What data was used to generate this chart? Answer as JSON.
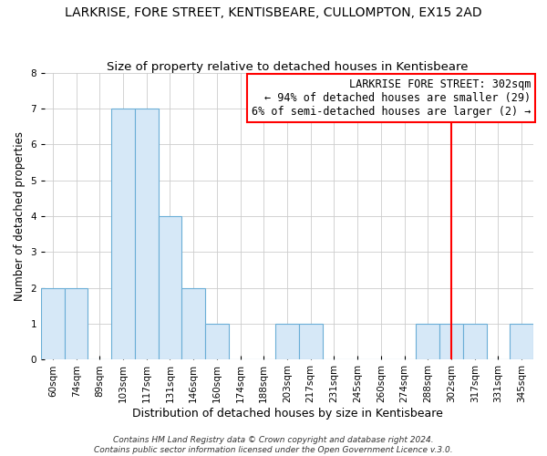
{
  "title": "LARKRISE, FORE STREET, KENTISBEARE, CULLOMPTON, EX15 2AD",
  "subtitle": "Size of property relative to detached houses in Kentisbeare",
  "xlabel": "Distribution of detached houses by size in Kentisbeare",
  "ylabel": "Number of detached properties",
  "bin_labels": [
    "60sqm",
    "74sqm",
    "89sqm",
    "103sqm",
    "117sqm",
    "131sqm",
    "146sqm",
    "160sqm",
    "174sqm",
    "188sqm",
    "203sqm",
    "217sqm",
    "231sqm",
    "245sqm",
    "260sqm",
    "274sqm",
    "288sqm",
    "302sqm",
    "317sqm",
    "331sqm",
    "345sqm"
  ],
  "bar_values": [
    2,
    2,
    0,
    7,
    7,
    4,
    2,
    1,
    0,
    0,
    1,
    1,
    0,
    0,
    0,
    0,
    1,
    1,
    1,
    0,
    1
  ],
  "bar_color": "#d6e8f7",
  "bar_edge_color": "#6aaed6",
  "ylim": [
    0,
    8
  ],
  "yticks": [
    0,
    1,
    2,
    3,
    4,
    5,
    6,
    7,
    8
  ],
  "red_line_index": 17,
  "annotation_title": "LARKRISE FORE STREET: 302sqm",
  "annotation_line1": "← 94% of detached houses are smaller (29)",
  "annotation_line2": "6% of semi-detached houses are larger (2) →",
  "footer_line1": "Contains HM Land Registry data © Crown copyright and database right 2024.",
  "footer_line2": "Contains public sector information licensed under the Open Government Licence v.3.0.",
  "background_color": "#ffffff",
  "plot_background": "#ffffff",
  "grid_color": "#cccccc",
  "title_fontsize": 10,
  "subtitle_fontsize": 9.5,
  "xlabel_fontsize": 9,
  "ylabel_fontsize": 8.5,
  "tick_fontsize": 7.5,
  "annotation_fontsize": 8.5,
  "footer_fontsize": 6.5
}
